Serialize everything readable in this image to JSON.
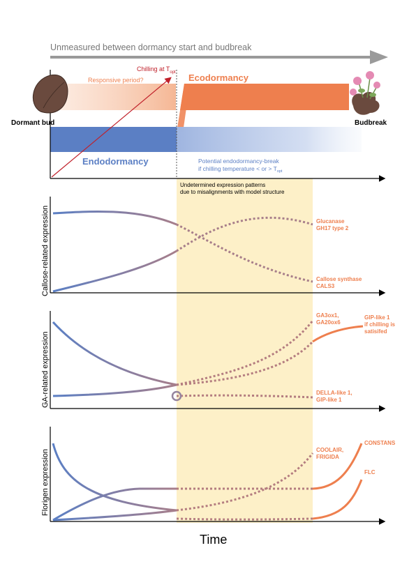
{
  "header": {
    "timeline_label": "Unmeasured between dormancy start and budbreak"
  },
  "phases": {
    "chilling_label": "Chilling at T",
    "chilling_sub": "opt",
    "responsive_label": "Responsive period?",
    "ecodormancy_label": "Ecodormancy",
    "endodormancy_label": "Endodormancy",
    "dormant_bud_label": "Dormant bud",
    "budbreak_label": "Budbreak",
    "potential_line1": "Potential endodormancy-break",
    "potential_line2": "if chilling temperature < or > T",
    "potential_sub": "opt"
  },
  "undetermined": {
    "line1": "Undetermined expression patterns",
    "line2": "due to misalignments with model structure"
  },
  "panels": [
    {
      "ylabel": "Callose-related expression",
      "labels": [
        {
          "line1": "Glucanase",
          "line2": "GH17 type 2"
        },
        {
          "line1": "Callose synthase",
          "line2": "CALS3"
        }
      ]
    },
    {
      "ylabel": "GA-related expression",
      "labels": [
        {
          "line1": "GA3ox1,",
          "line2": "GA20ox6"
        },
        {
          "line1": "GIP-like 1",
          "line2": "if chilling is",
          "line3": "satisifed"
        },
        {
          "line1": "DELLA-like 1,",
          "line2": "GIP-like 1"
        }
      ]
    },
    {
      "ylabel": "Florigen expression",
      "labels": [
        {
          "line1": "COOLAIR,",
          "line2": "FRIGIDA"
        },
        {
          "line1": "CONSTANS"
        },
        {
          "line1": "FLC"
        }
      ]
    }
  ],
  "xlabel": "Time",
  "colors": {
    "blue": "#5b7fc4",
    "orange": "#ee7f4e",
    "light_orange": "#f7c3a6",
    "purple": "#95849e",
    "highlight": "#fdf0c8",
    "red": "#c0202a",
    "gray_arrow": "#9a9a9a"
  }
}
